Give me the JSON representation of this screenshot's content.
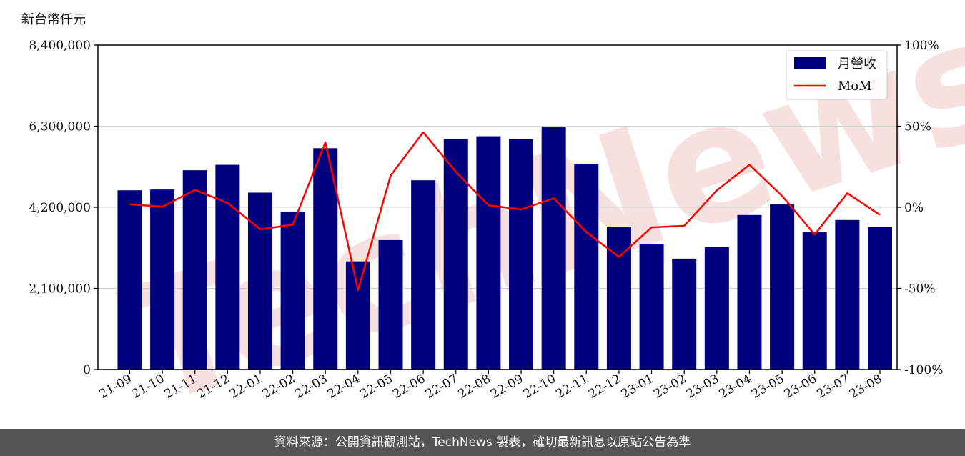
{
  "chart_data": {
    "type": "bar",
    "y_unit_label": "新台幣仟元",
    "categories": [
      "21-09",
      "21-10",
      "21-11",
      "21-12",
      "22-01",
      "22-02",
      "22-03",
      "22-04",
      "22-05",
      "22-06",
      "22-07",
      "22-08",
      "22-09",
      "22-10",
      "22-11",
      "22-12",
      "23-01",
      "23-02",
      "23-03",
      "23-04",
      "23-05",
      "23-06",
      "23-07",
      "23-08"
    ],
    "series": [
      {
        "name": "月營收",
        "type": "bar",
        "axis": "left",
        "color": "#00007f",
        "values": [
          4640000,
          4660000,
          5160000,
          5300000,
          4580000,
          4090000,
          5730000,
          2800000,
          3350000,
          4900000,
          5970000,
          6040000,
          5960000,
          6290000,
          5330000,
          3700000,
          3240000,
          2870000,
          3170000,
          4000000,
          4280000,
          3560000,
          3870000,
          3690000
        ]
      },
      {
        "name": "MoM",
        "type": "line",
        "axis": "right",
        "color": "#ff0000",
        "values": [
          1.8,
          0.4,
          10.7,
          2.7,
          -13.6,
          -10.7,
          40.1,
          -51.1,
          19.6,
          46.3,
          21.8,
          1.2,
          -1.3,
          5.5,
          -15.3,
          -30.6,
          -12.4,
          -11.4,
          10.5,
          26.2,
          7.0,
          -16.8,
          8.7,
          -4.7
        ]
      }
    ],
    "y_left": {
      "min": 0,
      "max": 8400000,
      "ticks": [
        0,
        2100000,
        4200000,
        6300000,
        8400000
      ],
      "tick_labels": [
        "0",
        "2,100,000",
        "4,200,000",
        "6,300,000",
        "8,400,000"
      ]
    },
    "y_right": {
      "min": -100,
      "max": 100,
      "ticks": [
        -100,
        -50,
        0,
        50,
        100
      ],
      "tick_labels": [
        "-100%",
        "-50%",
        "0%",
        "50%",
        "100%"
      ]
    },
    "grid": "horizontal",
    "legend_position": "top-right",
    "watermark": "TechNews"
  },
  "footer": {
    "text": "資料來源：公開資訊觀測站，TechNews 製表，確切最新訊息以原站公告為準"
  }
}
